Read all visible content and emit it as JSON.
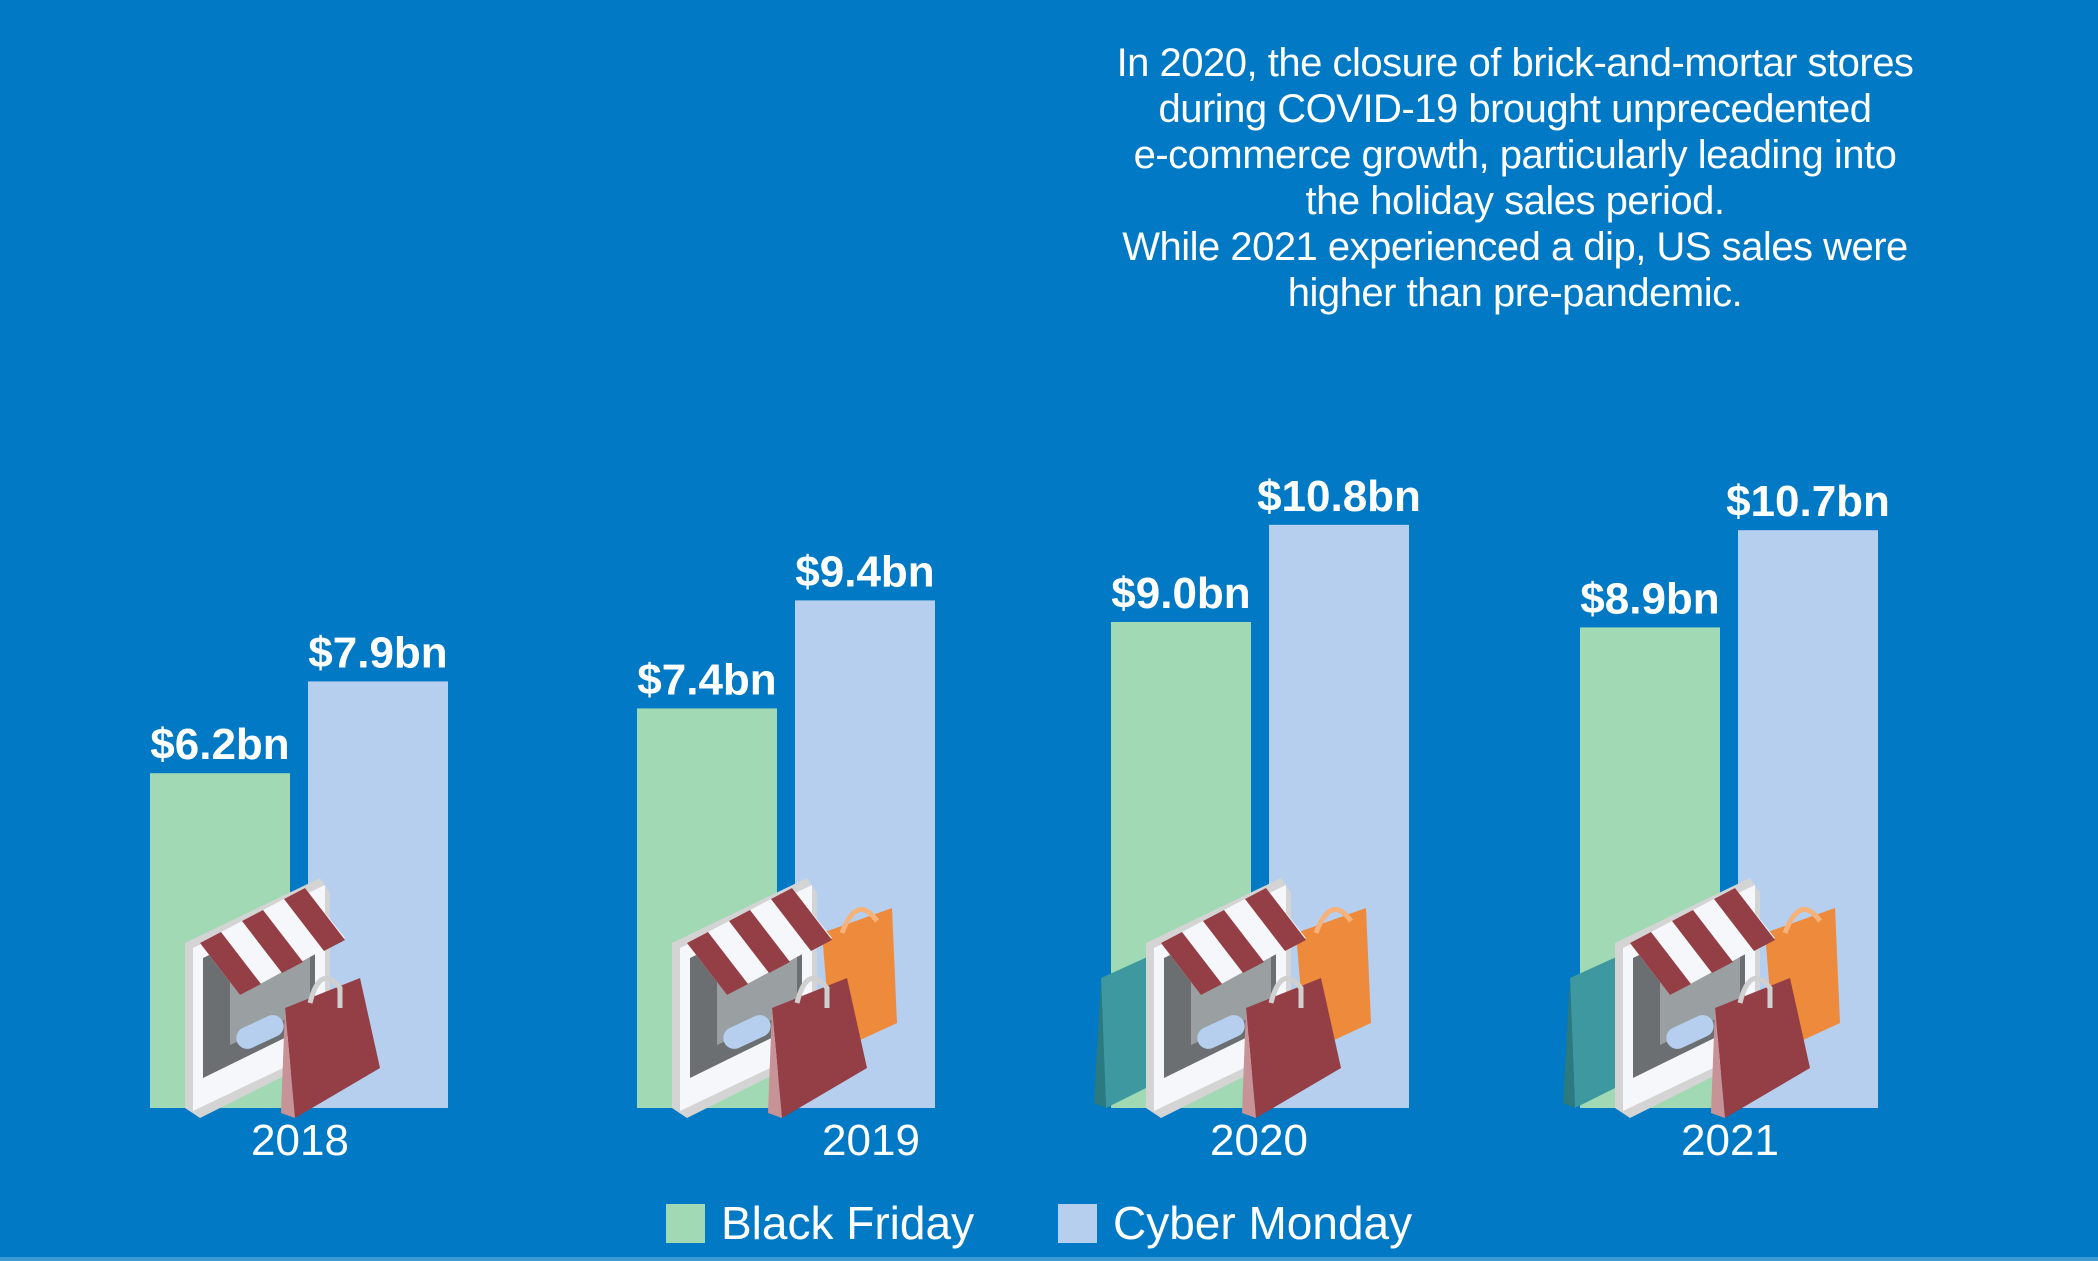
{
  "annotation": [
    "In 2020, the closure of brick-and-mortar stores",
    "during COVID-19 brought unprecedented",
    "e-commerce growth, particularly leading into",
    "the holiday sales period.",
    "While 2021 experienced a dip, US sales were",
    "higher than pre-pandemic."
  ],
  "colors": {
    "background": "#0179c4",
    "black_friday": "#a1d9b4",
    "cyber_monday": "#b6cfee"
  },
  "chart_data": {
    "type": "bar",
    "categories": [
      "2018",
      "2019",
      "2020",
      "2021"
    ],
    "unit": "$bn",
    "series": [
      {
        "name": "Black Friday",
        "values": [
          6.2,
          7.4,
          9.0,
          8.9
        ],
        "labels": [
          "$6.2bn",
          "$7.4bn",
          "$9.0bn",
          "$8.9bn"
        ],
        "color": "#a1d9b4"
      },
      {
        "name": "Cyber Monday",
        "values": [
          7.9,
          9.4,
          10.8,
          10.7
        ],
        "labels": [
          "$7.9bn",
          "$9.4bn",
          "$10.8bn",
          "$10.7bn"
        ],
        "color": "#b6cfee"
      }
    ],
    "ylim": [
      0,
      12
    ],
    "grid": false,
    "legend": "bottom-center",
    "icons": [
      "shop-tablet-icon",
      "shopping-bag-icon"
    ]
  },
  "legend": {
    "black_friday": "Black Friday",
    "cyber_monday": "Cyber Monday"
  }
}
